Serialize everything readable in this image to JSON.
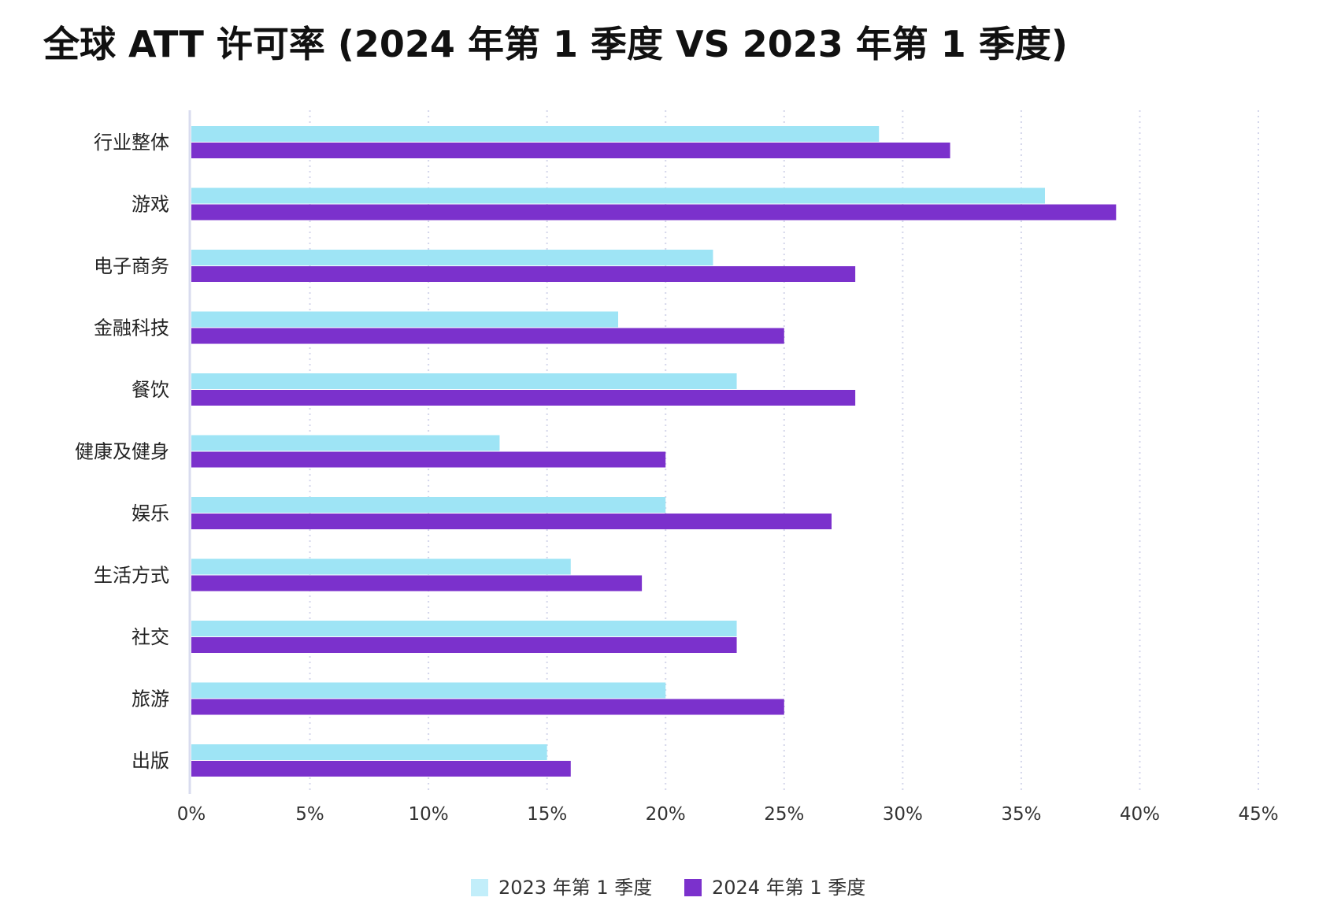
{
  "chart_data": {
    "type": "bar",
    "orientation": "horizontal",
    "title": "全球 ATT 许可率 (2024 年第 1 季度 VS 2023 年第 1 季度)",
    "xlabel": "",
    "ylabel": "",
    "xlim": [
      0,
      45
    ],
    "x_ticks": [
      "0%",
      "5%",
      "10%",
      "15%",
      "20%",
      "25%",
      "30%",
      "35%",
      "40%",
      "45%"
    ],
    "x_tick_values": [
      0,
      5,
      10,
      15,
      20,
      25,
      30,
      35,
      40,
      45
    ],
    "grid": "vertical dotted",
    "legend_position": "bottom",
    "categories": [
      "行业整体",
      "游戏",
      "电子商务",
      "金融科技",
      "餐饮",
      "健康及健身",
      "娱乐",
      "生活方式",
      "社交",
      "旅游",
      "出版"
    ],
    "series": [
      {
        "name": "2023 年第 1 季度",
        "color": "#9ee4f5",
        "legend_color": "#c2eefa",
        "values": [
          29,
          36,
          22,
          18,
          23,
          13,
          20,
          16,
          23,
          20,
          15
        ]
      },
      {
        "name": "2024 年第 1 季度",
        "color": "#7b31cc",
        "legend_color": "#7b31cc",
        "values": [
          32,
          39,
          28,
          25,
          28,
          20,
          27,
          19,
          23,
          25,
          16
        ]
      }
    ]
  }
}
